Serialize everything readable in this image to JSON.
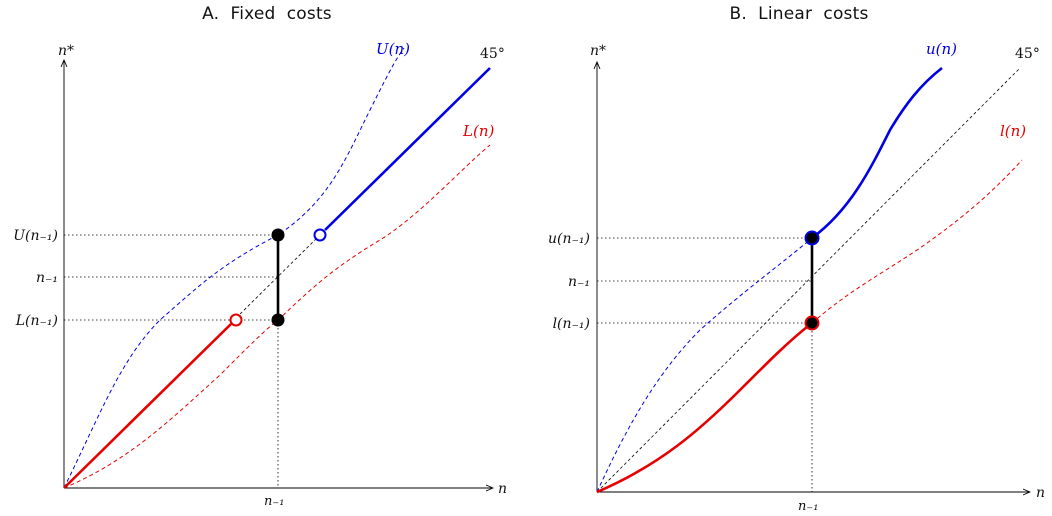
{
  "panels": [
    {
      "title": "A.  Fixed  costs",
      "y_axis_label": "n*",
      "x_axis_label": "n",
      "x_tick_label": "n₋₁",
      "upper_curve_label": "U(n)",
      "lower_curve_label": "L(n)",
      "diagonal_label": "45°",
      "y_tick_labels": {
        "upper": "U(n₋₁)",
        "middle": "n₋₁",
        "lower": "L(n₋₁)"
      }
    },
    {
      "title": "B.  Linear  costs",
      "y_axis_label": "n*",
      "x_axis_label": "n",
      "x_tick_label": "n₋₁",
      "upper_curve_label": "u(n)",
      "lower_curve_label": "l(n)",
      "diagonal_label": "45°",
      "y_tick_labels": {
        "upper": "u(n₋₁)",
        "middle": "n₋₁",
        "lower": "l(n₋₁)"
      }
    }
  ],
  "colors": {
    "upper": "#0000e6",
    "lower": "#e60000",
    "diagonal": "#000000",
    "axis": "#000000"
  }
}
